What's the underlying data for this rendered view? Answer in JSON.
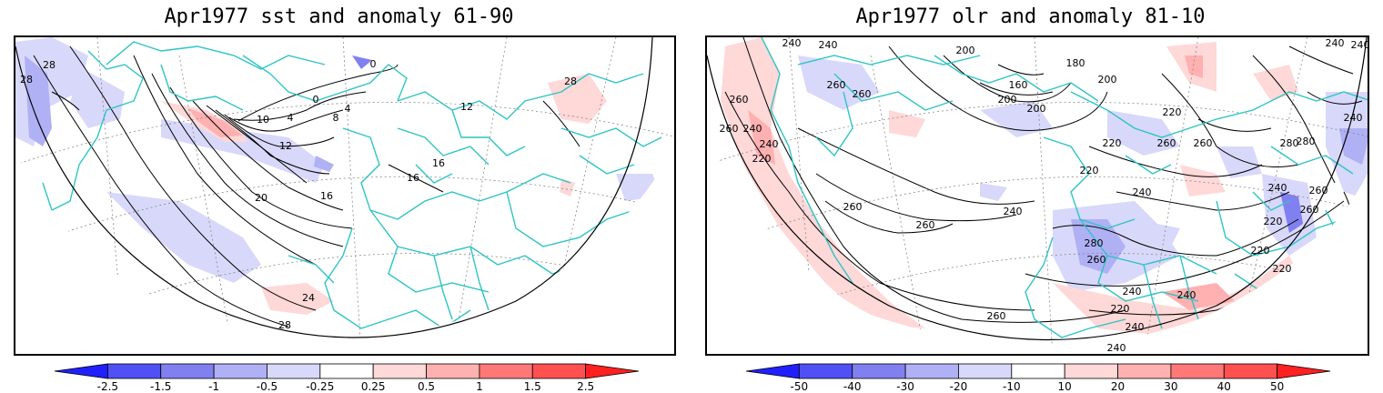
{
  "panels": [
    {
      "title": "Apr1977 sst and anomaly 61-90",
      "colorbar": {
        "ticks": [
          "-2.5",
          "-1.5",
          "-1",
          "-0.5",
          "-0.25",
          "0.25",
          "0.5",
          "1",
          "1.5",
          "2.5"
        ],
        "colors": [
          "#2020ff",
          "#5050f5",
          "#8080f0",
          "#b0b0f5",
          "#d8d8fa",
          "#ffffff",
          "#ffd8d8",
          "#ffb0b0",
          "#ff7878",
          "#ff5050",
          "#ff2020"
        ]
      },
      "contour_labels": [
        "28",
        "28",
        "0",
        "0",
        "4",
        "4",
        "8",
        "10",
        "12",
        "12",
        "16",
        "16",
        "16",
        "20",
        "24",
        "28",
        "28"
      ]
    },
    {
      "title": "Apr1977 olr and anomaly 81-10",
      "colorbar": {
        "ticks": [
          "-50",
          "-40",
          "-30",
          "-20",
          "-10",
          "10",
          "20",
          "30",
          "40",
          "50"
        ],
        "colors": [
          "#2020ff",
          "#5050f5",
          "#8080f0",
          "#b0b0f5",
          "#d8d8fa",
          "#ffffff",
          "#ffd8d8",
          "#ffb0b0",
          "#ff7878",
          "#ff5050",
          "#ff2020"
        ]
      },
      "contour_labels": [
        "240",
        "240",
        "240",
        "240",
        "200",
        "180",
        "160",
        "200",
        "200",
        "200",
        "220",
        "260",
        "260",
        "260",
        "240",
        "260",
        "240",
        "220",
        "220",
        "220",
        "260",
        "280",
        "240",
        "240",
        "260",
        "260",
        "240",
        "260",
        "280",
        "260",
        "220",
        "220",
        "280",
        "260",
        "260",
        "240",
        "220",
        "240",
        "260",
        "240",
        "240",
        "220",
        "240"
      ]
    }
  ]
}
